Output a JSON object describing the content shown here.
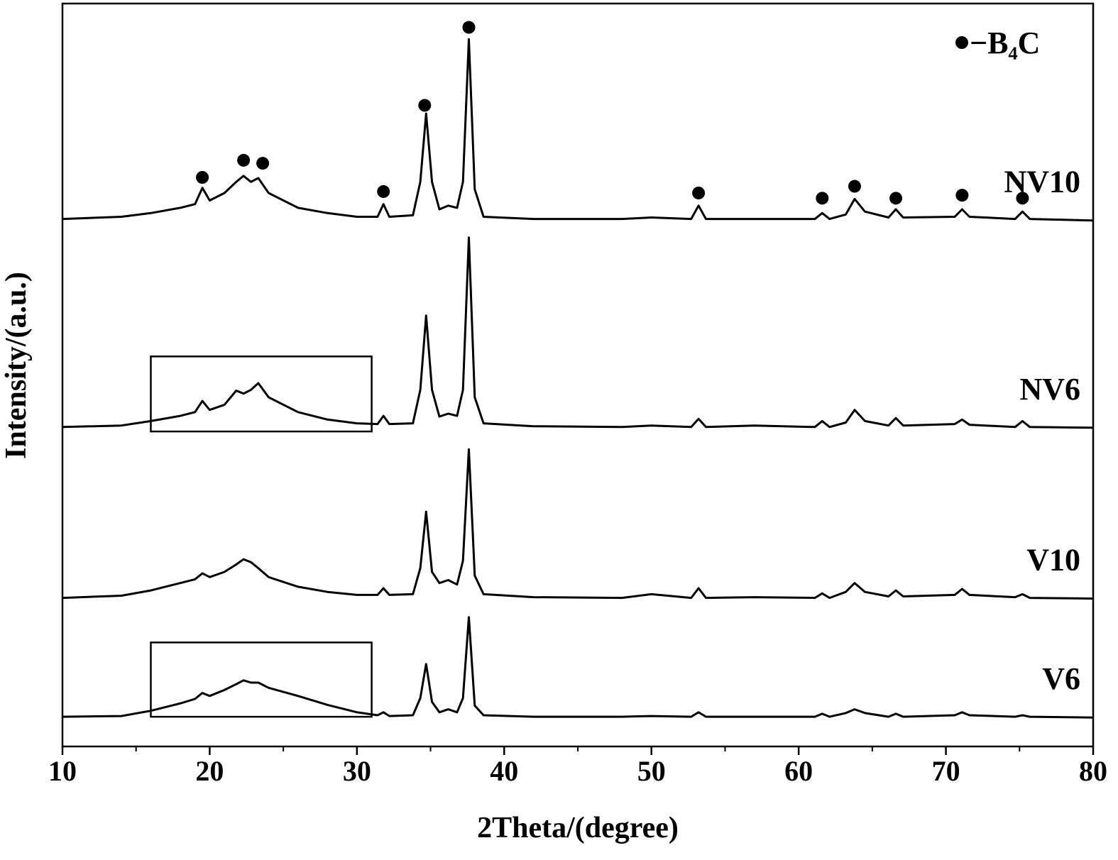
{
  "chart_data": {
    "type": "line",
    "x_label": "2Theta/(degree)",
    "y_label": "Intensity/(a.u.)",
    "xlim": [
      10,
      80
    ],
    "xticks": [
      10,
      20,
      30,
      40,
      50,
      60,
      70,
      80
    ],
    "ylim": [
      0,
      100
    ],
    "x": [
      10,
      14,
      16,
      18,
      19,
      19.5,
      20,
      21,
      21.8,
      22.3,
      22.8,
      23.3,
      24,
      26,
      28,
      30,
      31.4,
      31.8,
      32.2,
      33.8,
      34.3,
      34.7,
      35.1,
      35.6,
      36.2,
      36.8,
      37.2,
      37.6,
      38,
      38.6,
      42,
      48,
      50,
      52.7,
      53.2,
      53.7,
      57,
      61.1,
      61.6,
      62.1,
      63.2,
      63.8,
      64.5,
      66.1,
      66.6,
      67.1,
      70.6,
      71.1,
      71.6,
      74.7,
      75.2,
      75.7,
      80
    ],
    "series": [
      {
        "name": "NV10",
        "color": "#000000",
        "values": [
          71,
          71.3,
          71.8,
          72.5,
          73,
          75.2,
          73.5,
          74.5,
          76,
          76.8,
          76,
          76.5,
          74.5,
          72.5,
          71.8,
          71.3,
          71.3,
          73,
          71.3,
          71.5,
          76,
          85.2,
          76,
          72.3,
          72.8,
          72.5,
          76,
          95.2,
          75,
          71.3,
          71,
          71,
          71.2,
          71,
          72.8,
          71,
          71,
          71,
          71.8,
          71,
          71.6,
          73.7,
          72,
          71.2,
          72.3,
          71.2,
          71.3,
          72.3,
          71.3,
          71,
          72,
          71,
          70.8
        ]
      },
      {
        "name": "NV6",
        "color": "#000000",
        "values": [
          43,
          43.2,
          43.8,
          44.5,
          45,
          46.5,
          45.3,
          46,
          47.9,
          47.5,
          48,
          48.9,
          47,
          45,
          44,
          43.5,
          43.4,
          44.5,
          43.4,
          43.5,
          48,
          58,
          48,
          44.4,
          44.8,
          44.5,
          48,
          68.5,
          47,
          43.5,
          43.1,
          43,
          43.2,
          43,
          44.1,
          43,
          43.2,
          43,
          43.8,
          43,
          43.6,
          45.3,
          43.8,
          43.2,
          44.2,
          43.2,
          43.4,
          44,
          43.3,
          43,
          43.8,
          43,
          42.9
        ]
      },
      {
        "name": "V10",
        "color": "#000000",
        "values": [
          20,
          20.3,
          21,
          22,
          22.5,
          23.3,
          22.8,
          23.5,
          24.5,
          25.2,
          24.8,
          24,
          22.8,
          21.5,
          20.8,
          20.4,
          20.4,
          21.3,
          20.4,
          20.5,
          24,
          31.6,
          23.5,
          22,
          22.4,
          21.8,
          25,
          40,
          23,
          20.5,
          20.1,
          20,
          20.5,
          20,
          21.3,
          20,
          20.1,
          20,
          20.6,
          20,
          20.8,
          22,
          20.8,
          20.2,
          21,
          20.2,
          20.4,
          21.2,
          20.4,
          20.1,
          20.5,
          20,
          19.9
        ]
      },
      {
        "name": "V6",
        "color": "#000000",
        "values": [
          4,
          4.1,
          4.8,
          5.8,
          6.4,
          7.2,
          6.8,
          7.6,
          8.4,
          8.9,
          8.6,
          8.6,
          7.9,
          6.8,
          5.6,
          4.6,
          4.2,
          4.6,
          4.1,
          4.2,
          6.5,
          11.1,
          6,
          4.6,
          5,
          4.6,
          6.5,
          17.4,
          5.5,
          4.2,
          4,
          4,
          4.1,
          4,
          4.6,
          4,
          4,
          4,
          4.4,
          4,
          4.5,
          5,
          4.5,
          4,
          4.4,
          4,
          4.2,
          4.6,
          4.2,
          4,
          4.2,
          4,
          3.9
        ]
      }
    ],
    "peak_markers": {
      "label": "−B₄C",
      "x": [
        19.5,
        22.3,
        23.6,
        31.8,
        34.6,
        37.6,
        53.2,
        61.6,
        63.8,
        66.6,
        71.1,
        75.2
      ],
      "y": [
        76.6,
        78.9,
        78.5,
        74.7,
        86.3,
        96.8,
        74.5,
        73.8,
        75.4,
        73.8,
        74.2,
        73.8
      ]
    },
    "boxes": [
      {
        "x": [
          16,
          31
        ],
        "y": [
          42.4,
          52.5
        ]
      },
      {
        "x": [
          16,
          31
        ],
        "y": [
          4,
          14
        ]
      }
    ]
  }
}
